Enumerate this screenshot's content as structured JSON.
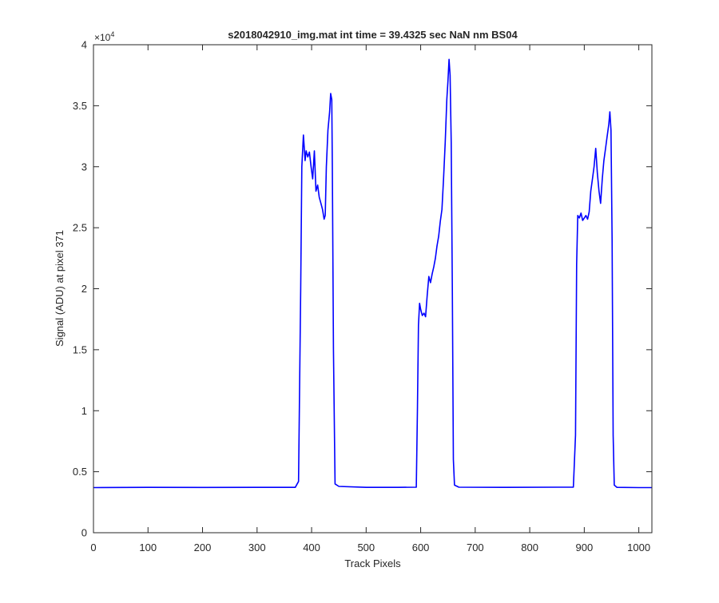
{
  "chart_data": {
    "type": "line",
    "title": "s2018042910_img.mat int time = 39.4325 sec  NaN nm BS04",
    "xlabel": "Track Pixels",
    "ylabel": "Signal (ADU) at pixel 371",
    "exponent_label": "×10",
    "exponent_power": "4",
    "xlim": [
      0,
      1024
    ],
    "ylim": [
      0,
      40000
    ],
    "x_ticks": [
      0,
      100,
      200,
      300,
      400,
      500,
      600,
      700,
      800,
      900,
      1000
    ],
    "x_tick_labels": [
      "0",
      "100",
      "200",
      "300",
      "400",
      "500",
      "600",
      "700",
      "800",
      "900",
      "1000"
    ],
    "y_ticks": [
      0,
      5000,
      10000,
      15000,
      20000,
      25000,
      30000,
      35000,
      40000
    ],
    "y_tick_labels": [
      "0",
      "0.5",
      "1",
      "1.5",
      "2",
      "2.5",
      "3",
      "3.5",
      "4"
    ],
    "grid": false,
    "line_color": "#0000ff",
    "series": [
      {
        "x": [
          0,
          100,
          200,
          300,
          370,
          376,
          380,
          382,
          385,
          388,
          390,
          393,
          396,
          399,
          402,
          405,
          408,
          411,
          414,
          417,
          420,
          423,
          425,
          427,
          430,
          433,
          435,
          437,
          438,
          440,
          443,
          450,
          500,
          560,
          592,
          594,
          596,
          598,
          600,
          603,
          606,
          609,
          612,
          615,
          618,
          621,
          624,
          627,
          630,
          633,
          636,
          639,
          642,
          645,
          648,
          650,
          652,
          654,
          656,
          658,
          660,
          662,
          670,
          750,
          850,
          880,
          884,
          886,
          888,
          891,
          894,
          897,
          900,
          903,
          906,
          909,
          912,
          915,
          918,
          921,
          924,
          927,
          930,
          933,
          936,
          939,
          942,
          945,
          947,
          949,
          951,
          953,
          955,
          960,
          1000,
          1024
        ],
        "y": [
          3700,
          3720,
          3710,
          3720,
          3720,
          4200,
          20000,
          30000,
          32600,
          30500,
          31300,
          30800,
          31200,
          30000,
          29000,
          31300,
          28000,
          28500,
          27500,
          27000,
          26500,
          25700,
          26000,
          30000,
          33000,
          34500,
          36000,
          35500,
          30000,
          15000,
          4000,
          3800,
          3720,
          3720,
          3730,
          10000,
          17000,
          18800,
          18300,
          17800,
          18000,
          17700,
          19500,
          21000,
          20500,
          21200,
          21800,
          22500,
          23500,
          24300,
          25500,
          26500,
          29000,
          32000,
          35500,
          37000,
          38800,
          37500,
          32000,
          20000,
          6000,
          3900,
          3730,
          3720,
          3730,
          3740,
          8000,
          22000,
          26000,
          25800,
          26200,
          25600,
          25800,
          26000,
          25700,
          26300,
          28000,
          29000,
          30000,
          31500,
          29500,
          28000,
          27000,
          29000,
          30500,
          31500,
          32500,
          33500,
          34500,
          33000,
          24000,
          8000,
          3900,
          3720,
          3700,
          3700
        ]
      }
    ]
  }
}
